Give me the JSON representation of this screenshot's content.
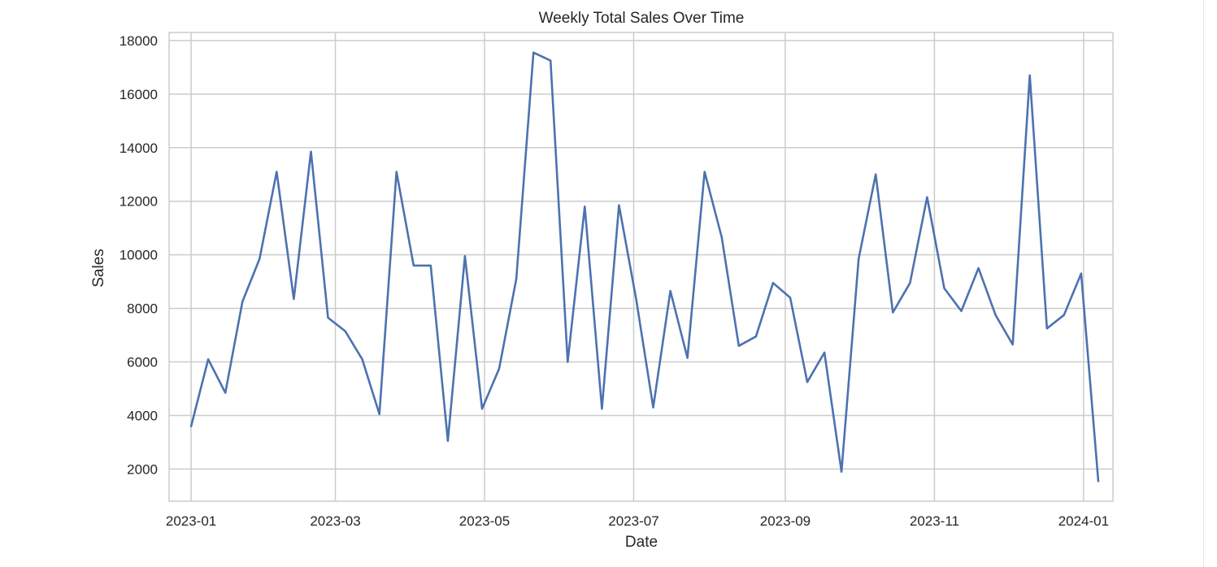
{
  "chart_data": {
    "type": "line",
    "title": "Weekly Total Sales Over Time",
    "xlabel": "Date",
    "ylabel": "Sales",
    "grid": true,
    "x_ticks": [
      "2023-01",
      "2023-03",
      "2023-05",
      "2023-07",
      "2023-09",
      "2023-11",
      "2024-01"
    ],
    "y_ticks": [
      2000,
      4000,
      6000,
      8000,
      10000,
      12000,
      14000,
      16000,
      18000
    ],
    "xlim": [
      "2022-12-23",
      "2024-01-13"
    ],
    "ylim": [
      800,
      18300
    ],
    "series": [
      {
        "color": "#4c72b0",
        "x": [
          "2023-01-01",
          "2023-01-08",
          "2023-01-15",
          "2023-01-22",
          "2023-01-29",
          "2023-02-05",
          "2023-02-12",
          "2023-02-19",
          "2023-02-26",
          "2023-03-05",
          "2023-03-12",
          "2023-03-19",
          "2023-03-26",
          "2023-04-02",
          "2023-04-09",
          "2023-04-16",
          "2023-04-23",
          "2023-04-30",
          "2023-05-07",
          "2023-05-14",
          "2023-05-21",
          "2023-05-28",
          "2023-06-04",
          "2023-06-11",
          "2023-06-18",
          "2023-06-25",
          "2023-07-02",
          "2023-07-09",
          "2023-07-16",
          "2023-07-23",
          "2023-07-30",
          "2023-08-06",
          "2023-08-13",
          "2023-08-20",
          "2023-08-27",
          "2023-09-03",
          "2023-09-10",
          "2023-09-17",
          "2023-09-24",
          "2023-10-01",
          "2023-10-08",
          "2023-10-15",
          "2023-10-22",
          "2023-10-29",
          "2023-11-05",
          "2023-11-12",
          "2023-11-19",
          "2023-11-26",
          "2023-12-03",
          "2023-12-10",
          "2023-12-17",
          "2023-12-24",
          "2023-12-31",
          "2024-01-07"
        ],
        "values": [
          3600,
          6100,
          4850,
          8250,
          9850,
          13100,
          8350,
          13850,
          7650,
          7150,
          6100,
          4050,
          13100,
          9600,
          9600,
          3050,
          9950,
          4250,
          5750,
          9100,
          17550,
          17250,
          6000,
          11800,
          4250,
          11850,
          8350,
          4300,
          8650,
          6150,
          13100,
          10650,
          6600,
          6950,
          8950,
          8400,
          5250,
          6350,
          1900,
          9850,
          13000,
          7850,
          8950,
          12150,
          8750,
          7900,
          9500,
          7750,
          6650,
          16700,
          7250,
          7750,
          9300,
          1550
        ]
      }
    ]
  }
}
